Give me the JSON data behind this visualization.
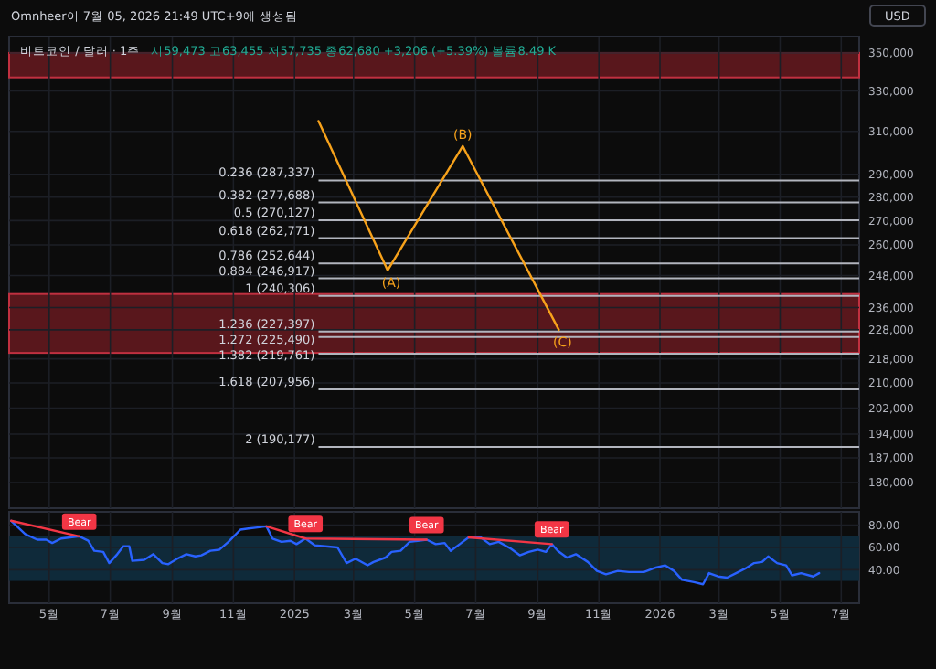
{
  "chart_data": [
    {
      "type": "line",
      "title": "비트코인 / 달러 · 1주",
      "subtitle": "시59,473 고63,455 저57,735 종62,680 +3,206 (+5.39%) 볼륨8.49 K",
      "annotations": [
        "Omnheer이 7월 05, 2026 21:49 UTC+9에 생성됨",
        "USD",
        {
          "text": "(A)",
          "x": "2025-04-04",
          "y": 250000
        },
        {
          "text": "(B)",
          "x": "2025-06-18",
          "y": 303000
        },
        {
          "text": "(C)",
          "x": "2025-09-22",
          "y": 228000
        }
      ],
      "series": [
        {
          "color": "#f7a21b",
          "x": [
            "2025-01-25",
            "2025-04-04",
            "2025-06-18",
            "2025-09-22"
          ],
          "values": [
            315000,
            250000,
            303000,
            228000
          ]
        }
      ],
      "log": true,
      "grid": true,
      "tick_labels": "y",
      "xlim": [
        "2024-03-22",
        "2026-07-19"
      ],
      "xticks": [
        "2024-05-01",
        "2024-07-01",
        "2024-09-01",
        "2024-11-01",
        "2025-01-01",
        "2025-03-01",
        "2025-05-01",
        "2025-07-01",
        "2025-09-01",
        "2025-11-01",
        "2026-01-01",
        "2026-03-01",
        "2026-05-01",
        "2026-07-01"
      ],
      "ylim": [
        173000,
        359000
      ],
      "yticks": [
        {
          "value": 350000,
          "label": "350,000"
        },
        {
          "value": 330000,
          "label": "330,000"
        },
        {
          "value": 310000,
          "label": "310,000"
        },
        {
          "value": 290000,
          "label": "290,000"
        },
        {
          "value": 280000,
          "label": "280,000"
        },
        {
          "value": 270000,
          "label": "270,000"
        },
        {
          "value": 260000,
          "label": "260,000"
        },
        {
          "value": 248000,
          "label": "248,000"
        },
        {
          "value": 236000,
          "label": "236,000"
        },
        {
          "value": 228000,
          "label": "228,000"
        },
        {
          "value": 218000,
          "label": "218,000"
        },
        {
          "value": 210000,
          "label": "210,000"
        },
        {
          "value": 202000,
          "label": "202,000"
        },
        {
          "value": 194000,
          "label": "194,000"
        },
        {
          "value": 187000,
          "label": "187,000"
        },
        {
          "value": 180000,
          "label": "180,000"
        }
      ],
      "bands": [
        {
          "axis": "y",
          "from": 337000,
          "to": 350000,
          "color": "#7a1c24"
        },
        {
          "axis": "y",
          "from": 220000,
          "to": 241000,
          "color": "#7a1c24"
        }
      ],
      "ref_lines": [
        {
          "axis": "y",
          "value": 287337,
          "label": "0.236 (287,337)",
          "color": "#b2b5be"
        },
        {
          "axis": "y",
          "value": 277688,
          "label": "0.382 (277,688)",
          "color": "#b2b5be"
        },
        {
          "axis": "y",
          "value": 270127,
          "label": "0.5 (270,127)",
          "color": "#b2b5be"
        },
        {
          "axis": "y",
          "value": 262771,
          "label": "0.618 (262,771)",
          "color": "#b2b5be"
        },
        {
          "axis": "y",
          "value": 252644,
          "label": "0.786 (252,644)",
          "color": "#b2b5be"
        },
        {
          "axis": "y",
          "value": 246917,
          "label": "0.884 (246,917)",
          "color": "#b2b5be"
        },
        {
          "axis": "y",
          "value": 240306,
          "label": "1 (240,306)",
          "color": "#b2b5be"
        },
        {
          "axis": "y",
          "value": 227397,
          "label": "1.236 (227,397)",
          "color": "#b2b5be"
        },
        {
          "axis": "y",
          "value": 225490,
          "label": "1.272 (225,490)",
          "color": "#b2b5be"
        },
        {
          "axis": "y",
          "value": 219761,
          "label": "1.382 (219,761)",
          "color": "#b2b5be"
        },
        {
          "axis": "y",
          "value": 207956,
          "label": "1.618 (207,956)",
          "color": "#b2b5be"
        },
        {
          "axis": "y",
          "value": 190177,
          "label": "2 (190,177)",
          "color": "#b2b5be"
        }
      ]
    },
    {
      "type": "line",
      "grid": true,
      "xticks": [
        {
          "value": "2024-05-01",
          "label": "5월"
        },
        {
          "value": "2024-07-01",
          "label": "7월"
        },
        {
          "value": "2024-09-01",
          "label": "9월"
        },
        {
          "value": "2024-11-01",
          "label": "11월"
        },
        {
          "value": "2025-01-01",
          "label": "2025"
        },
        {
          "value": "2025-03-01",
          "label": "3월"
        },
        {
          "value": "2025-05-01",
          "label": "5월"
        },
        {
          "value": "2025-07-01",
          "label": "7월"
        },
        {
          "value": "2025-09-01",
          "label": "9월"
        },
        {
          "value": "2025-11-01",
          "label": "11월"
        },
        {
          "value": "2026-01-01",
          "label": "2026"
        },
        {
          "value": "2026-03-01",
          "label": "3월"
        },
        {
          "value": "2026-05-01",
          "label": "5월"
        },
        {
          "value": "2026-07-01",
          "label": "7월"
        }
      ],
      "ylim": [
        10,
        92
      ],
      "xlim": [
        "2024-03-22",
        "2026-07-19"
      ],
      "yticks": [
        {
          "value": 40,
          "label": "40.00"
        },
        {
          "value": 60,
          "label": "60.00"
        },
        {
          "value": 80,
          "label": "80.00"
        }
      ],
      "bands": [
        {
          "axis": "y",
          "from": 30,
          "to": 70,
          "color": "#0f2a3a"
        }
      ],
      "annotations": [
        {
          "text": "Bear",
          "x": "2024-05-31",
          "y": 70
        },
        {
          "text": "Bear",
          "x": "2025-01-12",
          "y": 68
        },
        {
          "text": "Bear",
          "x": "2025-05-13",
          "y": 67
        },
        {
          "text": "Bear",
          "x": "2025-09-15",
          "y": 63
        }
      ],
      "series": [
        {
          "color": "#2962ff",
          "x": [
            "2024-03-24",
            "2024-04-07",
            "2024-04-19",
            "2024-04-28",
            "2024-05-04",
            "2024-05-13",
            "2024-05-22",
            "2024-05-31",
            "2024-06-09",
            "2024-06-15",
            "2024-06-24",
            "2024-06-30",
            "2024-07-08",
            "2024-07-14",
            "2024-07-20",
            "2024-07-23",
            "2024-08-04",
            "2024-08-13",
            "2024-08-22",
            "2024-08-28",
            "2024-09-06",
            "2024-09-15",
            "2024-09-24",
            "2024-09-30",
            "2024-10-09",
            "2024-10-18",
            "2024-10-27",
            "2024-11-08",
            "2024-11-16",
            "2024-11-25",
            "2024-12-04",
            "2024-12-10",
            "2024-12-19",
            "2024-12-28",
            "2025-01-03",
            "2025-01-12",
            "2025-01-21",
            "2025-02-01",
            "2025-02-13",
            "2025-02-22",
            "2025-03-03",
            "2025-03-15",
            "2025-03-21",
            "2025-04-02",
            "2025-04-08",
            "2025-04-17",
            "2025-04-26",
            "2025-05-04",
            "2025-05-13",
            "2025-05-22",
            "2025-05-31",
            "2025-06-06",
            "2025-06-15",
            "2025-06-24",
            "2025-07-06",
            "2025-07-15",
            "2025-07-24",
            "2025-08-05",
            "2025-08-14",
            "2025-08-23",
            "2025-09-01",
            "2025-09-09",
            "2025-09-15",
            "2025-09-21",
            "2025-09-30",
            "2025-10-09",
            "2025-10-21",
            "2025-10-30",
            "2025-11-08",
            "2025-11-20",
            "2025-12-01",
            "2025-12-16",
            "2025-12-28",
            "2026-01-06",
            "2026-01-15",
            "2026-01-23",
            "2026-02-04",
            "2026-02-13",
            "2026-02-19",
            "2026-02-28",
            "2026-03-09",
            "2026-03-18",
            "2026-03-27",
            "2026-04-05",
            "2026-04-13",
            "2026-04-19",
            "2026-04-28",
            "2026-05-07",
            "2026-05-13",
            "2026-05-22",
            "2026-06-03",
            "2026-06-09"
          ],
          "values": [
            84,
            72,
            67,
            67,
            64,
            68,
            69,
            70,
            66,
            57,
            56,
            46,
            54,
            61,
            61,
            48,
            49,
            54,
            46,
            45,
            50,
            54,
            52,
            53,
            57,
            58,
            65,
            76,
            77,
            78,
            79,
            68,
            65,
            66,
            63,
            68,
            62,
            61,
            60,
            46,
            50,
            44,
            47,
            51,
            56,
            57,
            65,
            66,
            67,
            63,
            64,
            57,
            63,
            69,
            69,
            63,
            65,
            59,
            53,
            56,
            58,
            56,
            63,
            57,
            51,
            54,
            47,
            39,
            36,
            39,
            38,
            38,
            42,
            44,
            39,
            31,
            29,
            27,
            37,
            34,
            33,
            37,
            41,
            46,
            47,
            52,
            46,
            44,
            35,
            37,
            34,
            37
          ]
        },
        {
          "color": "#f23645",
          "x": [
            "2024-03-24",
            "2024-05-31"
          ],
          "values": [
            84,
            70
          ]
        },
        {
          "color": "#f23645",
          "x": [
            "2024-12-04",
            "2025-01-12",
            "2025-05-13"
          ],
          "values": [
            79,
            68,
            67
          ]
        },
        {
          "color": "#f23645",
          "x": [
            "2025-06-24",
            "2025-09-15"
          ],
          "values": [
            69,
            63
          ]
        }
      ]
    }
  ]
}
